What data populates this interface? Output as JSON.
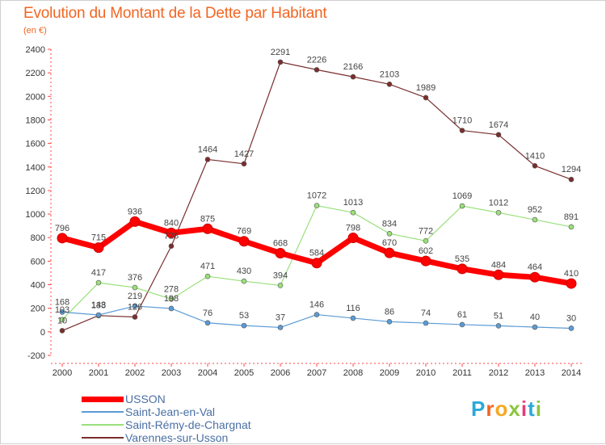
{
  "title": "Evolution du Montant de la Dette par Habitant",
  "subtitle": "(en €)",
  "logo": {
    "letters": [
      "P",
      "r",
      "o",
      "x",
      "i",
      "t",
      "i"
    ],
    "colors": [
      "#2aa9d8",
      "#f26522",
      "#f7a823",
      "#8cc63e",
      "#e63b7a",
      "#2aa9d8",
      "#8cc63e"
    ]
  },
  "chart_data": {
    "type": "line",
    "title": "Evolution du Montant de la Dette par Habitant",
    "ylabel": "(en €)",
    "xlabel": "",
    "x": [
      2000,
      2001,
      2002,
      2003,
      2004,
      2005,
      2006,
      2007,
      2008,
      2009,
      2010,
      2011,
      2012,
      2013,
      2014
    ],
    "ylim": [
      -200,
      2400
    ],
    "yticks": [
      -200,
      0,
      200,
      400,
      600,
      800,
      1000,
      1200,
      1400,
      1600,
      1800,
      2000,
      2200,
      2400
    ],
    "grid": false,
    "legend_position": "bottom-left",
    "series": [
      {
        "name": "USSON",
        "color": "#ff0000",
        "values": [
          796,
          715,
          936,
          840,
          875,
          769,
          668,
          584,
          798,
          670,
          602,
          535,
          484,
          464,
          410
        ]
      },
      {
        "name": "Saint-Jean-en-Val",
        "color": "#5b9bd5",
        "values": [
          168,
          143,
          219,
          198,
          76,
          53,
          37,
          146,
          116,
          86,
          74,
          61,
          51,
          40,
          30
        ]
      },
      {
        "name": "Saint-Rémy-de-Chargnat",
        "color": "#99e07a",
        "values": [
          103,
          417,
          376,
          278,
          471,
          430,
          394,
          1072,
          1013,
          834,
          772,
          1069,
          1012,
          952,
          891
        ]
      },
      {
        "name": "Varennes-sur-Usson",
        "color": "#7a2e2e",
        "values": [
          10,
          138,
          126,
          728,
          1464,
          1427,
          2291,
          2226,
          2166,
          2103,
          1989,
          1710,
          1674,
          1410,
          1294
        ]
      }
    ]
  }
}
